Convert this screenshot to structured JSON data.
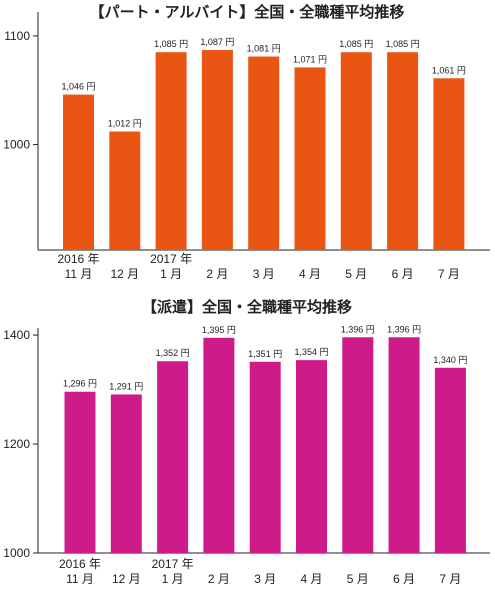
{
  "colors": {
    "chart1_bar": "#e95513",
    "chart2_bar": "#cf1a8a",
    "axis": "#222222"
  },
  "chart_data": [
    {
      "type": "bar",
      "title": "【パート・アルバイト】全国・全職種平均推移",
      "categories": [
        "2016年 11月",
        "12月",
        "2017年 1月",
        "2月",
        "3月",
        "4月",
        "5月",
        "6月",
        "7月"
      ],
      "category_lines": [
        [
          "2016 年",
          "11 月"
        ],
        [
          "",
          "12 月"
        ],
        [
          "2017 年",
          "1 月"
        ],
        [
          "",
          "2 月"
        ],
        [
          "",
          "3 月"
        ],
        [
          "",
          "4 月"
        ],
        [
          "",
          "5 月"
        ],
        [
          "",
          "6 月"
        ],
        [
          "",
          "7 月"
        ]
      ],
      "values": [
        1046,
        1012,
        1085,
        1087,
        1081,
        1071,
        1085,
        1085,
        1061
      ],
      "data_labels": [
        "1,046 円",
        "1,012 円",
        "1,085 円",
        "1,087 円",
        "1,081 円",
        "1,071 円",
        "1,085 円",
        "1,085 円",
        "1,061 円"
      ],
      "yticks": [
        1000,
        1100
      ],
      "ylim": [
        903,
        1122
      ],
      "grid": false
    },
    {
      "type": "bar",
      "title": "【派遣】全国・全職種平均推移",
      "categories": [
        "2016年 11月",
        "12月",
        "2017年 1月",
        "2月",
        "3月",
        "4月",
        "5月",
        "6月",
        "7月"
      ],
      "category_lines": [
        [
          "2016 年",
          "11 月"
        ],
        [
          "",
          "12 月"
        ],
        [
          "2017 年",
          "1 月"
        ],
        [
          "",
          "2 月"
        ],
        [
          "",
          "3 月"
        ],
        [
          "",
          "4 月"
        ],
        [
          "",
          "5 月"
        ],
        [
          "",
          "6 月"
        ],
        [
          "",
          "7 月"
        ]
      ],
      "values": [
        1296,
        1291,
        1352,
        1395,
        1351,
        1354,
        1396,
        1396,
        1340
      ],
      "data_labels": [
        "1,296 円",
        "1,291 円",
        "1,352 円",
        "1,395 円",
        "1,351 円",
        "1,354 円",
        "1,396 円",
        "1,396 円",
        "1,340 円"
      ],
      "yticks": [
        1000,
        1200,
        1400
      ],
      "ylim": [
        1000,
        1413
      ],
      "grid": false
    }
  ]
}
